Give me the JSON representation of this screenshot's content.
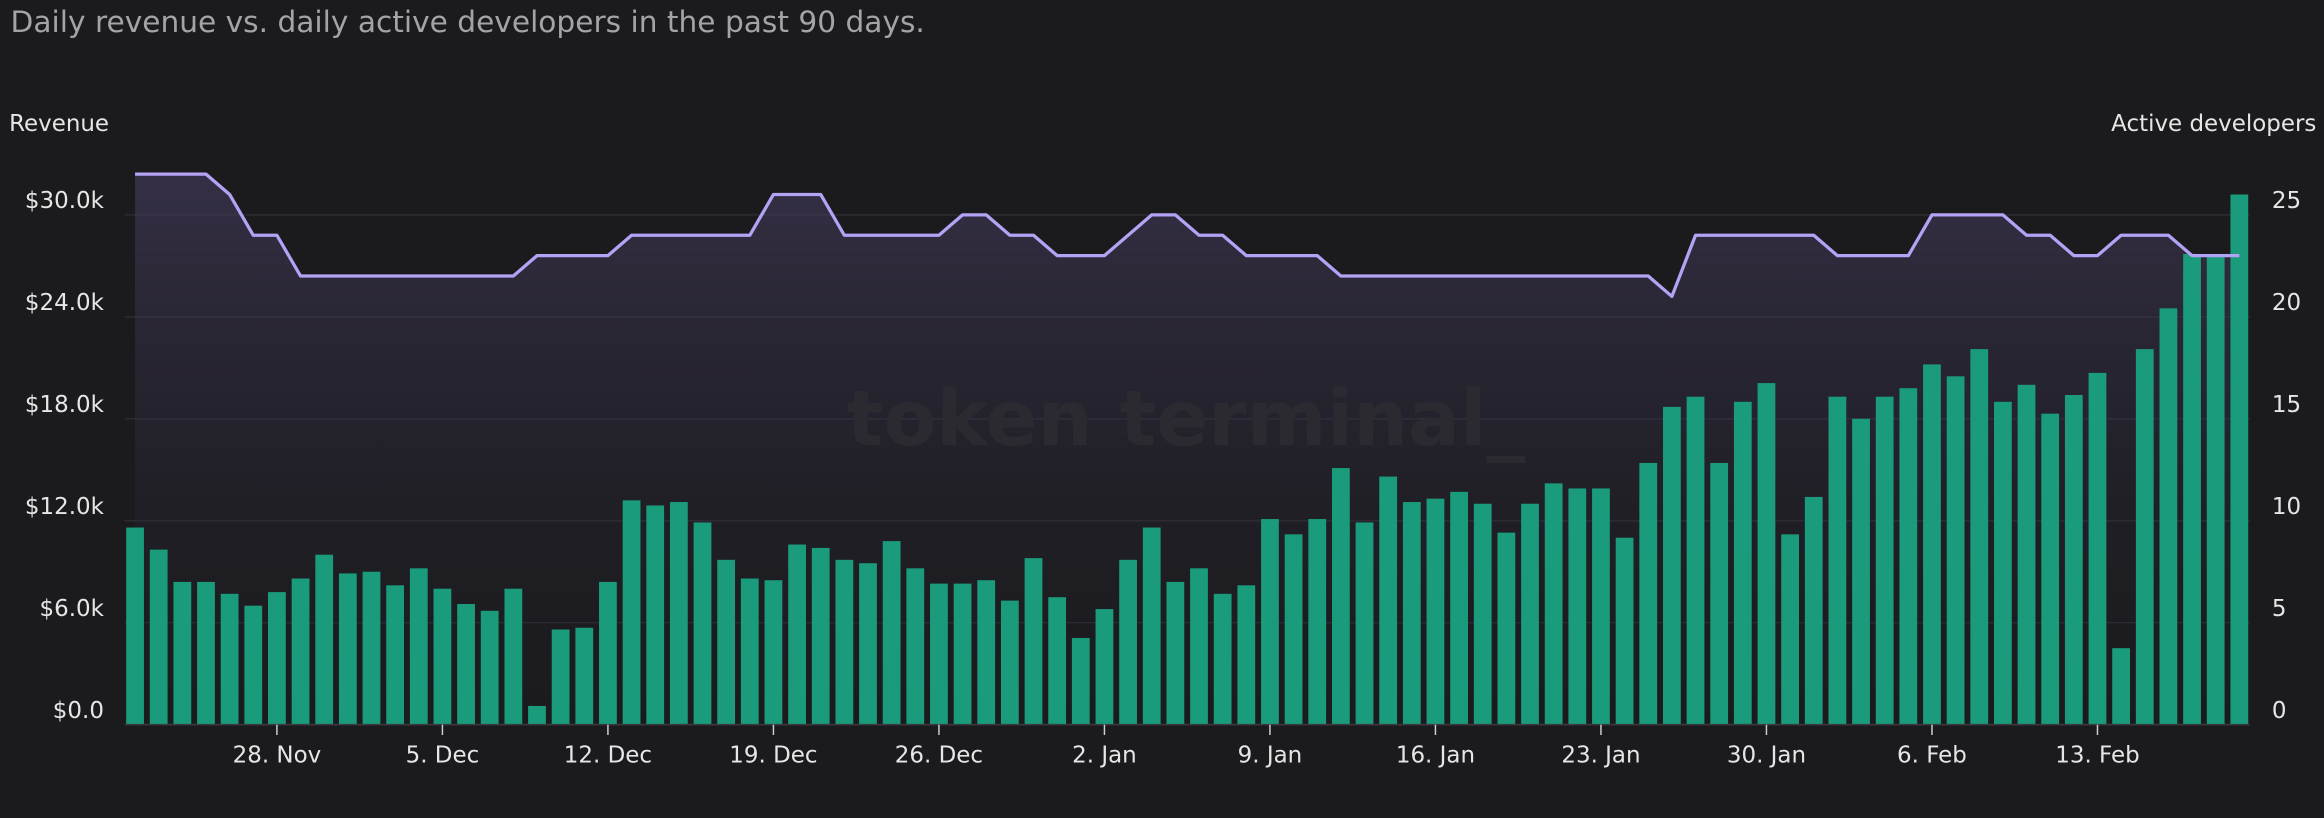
{
  "chart_data": {
    "type": "bar-line",
    "title": "Daily revenue vs. daily active developers in the past 90 days.",
    "ylabel": "Revenue",
    "y2label": "Active developers",
    "watermark": "token terminal_",
    "categories": [
      null,
      null,
      null,
      null,
      null,
      null,
      "28. Nov",
      null,
      null,
      null,
      null,
      null,
      null,
      "5. Dec",
      null,
      null,
      null,
      null,
      null,
      null,
      "12. Dec",
      null,
      null,
      null,
      null,
      null,
      null,
      "19. Dec",
      null,
      null,
      null,
      null,
      null,
      null,
      "26. Dec",
      null,
      null,
      null,
      null,
      null,
      null,
      "2. Jan",
      null,
      null,
      null,
      null,
      null,
      null,
      "9. Jan",
      null,
      null,
      null,
      null,
      null,
      null,
      "16. Jan",
      null,
      null,
      null,
      null,
      null,
      null,
      "23. Jan",
      null,
      null,
      null,
      null,
      null,
      null,
      "30. Jan",
      null,
      null,
      null,
      null,
      null,
      null,
      "6. Feb",
      null,
      null,
      null,
      null,
      null,
      null,
      "13. Feb",
      null,
      null,
      null,
      null,
      null,
      null
    ],
    "series": [
      {
        "type": "bar",
        "color": "#1a9b7b",
        "values": [
          11600,
          10300,
          8400,
          8400,
          7700,
          7000,
          7800,
          8600,
          10000,
          8900,
          9000,
          8200,
          9200,
          8000,
          7100,
          6700,
          8000,
          1100,
          5600,
          5700,
          8400,
          13200,
          12900,
          13100,
          11900,
          9700,
          8600,
          8500,
          10600,
          10400,
          9700,
          9500,
          10800,
          9200,
          8300,
          8300,
          8500,
          7300,
          9800,
          7500,
          5100,
          6800,
          9700,
          11600,
          8400,
          9200,
          7700,
          8200,
          12100,
          11200,
          12100,
          15100,
          11900,
          14600,
          13100,
          13300,
          13700,
          13000,
          11300,
          13000,
          14200,
          13900,
          13900,
          11000,
          15400,
          18700,
          19300,
          15400,
          19000,
          20100,
          11200,
          13400,
          19300,
          18000,
          19300,
          19800,
          21200,
          20500,
          22100,
          19000,
          20000,
          18300,
          19400,
          20700,
          4500,
          22100,
          24500,
          27700,
          27700,
          31200
        ]
      },
      {
        "type": "line",
        "axis": "y2",
        "color": "#b4a3f5",
        "values": [
          27,
          27,
          27,
          27,
          26,
          24,
          24,
          22,
          22,
          22,
          22,
          22,
          22,
          22,
          22,
          22,
          22,
          23,
          23,
          23,
          23,
          24,
          24,
          24,
          24,
          24,
          24,
          26,
          26,
          26,
          24,
          24,
          24,
          24,
          24,
          25,
          25,
          24,
          24,
          23,
          23,
          23,
          24,
          25,
          25,
          24,
          24,
          23,
          23,
          23,
          23,
          22,
          22,
          22,
          22,
          22,
          22,
          22,
          22,
          22,
          22,
          22,
          22,
          22,
          22,
          21,
          24,
          24,
          24,
          24,
          24,
          24,
          23,
          23,
          23,
          23,
          25,
          25,
          25,
          25,
          24,
          24,
          23,
          23,
          24,
          24,
          24,
          23,
          23,
          23
        ]
      }
    ],
    "ylim": [
      0,
      30000
    ],
    "yticks": [
      {
        "value": 0,
        "label": "$0.0"
      },
      {
        "value": 6000,
        "label": "$6.0k"
      },
      {
        "value": 12000,
        "label": "$12.0k"
      },
      {
        "value": 18000,
        "label": "$18.0k"
      },
      {
        "value": 24000,
        "label": "$24.0k"
      },
      {
        "value": 30000,
        "label": "$30.0k"
      }
    ],
    "y2lim": [
      0,
      25
    ],
    "y2ticks": [
      0,
      5,
      10,
      15,
      20,
      25
    ],
    "grid": true
  }
}
